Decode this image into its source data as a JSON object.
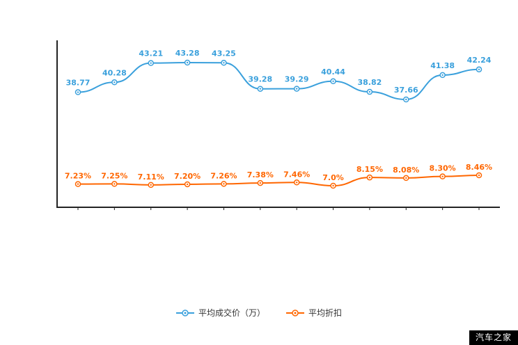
{
  "chart_data": {
    "type": "line",
    "grid": false,
    "legend_position": "bottom",
    "axis_color": "#222222",
    "x_axis": {
      "tick_count": 12,
      "labels_visible": false
    },
    "series": [
      {
        "name": "平均成交价（万）",
        "color": "#3aa0dc",
        "values": [
          38.77,
          40.28,
          43.21,
          43.28,
          43.25,
          39.28,
          39.29,
          40.44,
          38.82,
          37.66,
          41.38,
          42.24
        ],
        "labels": [
          "38.77",
          "40.28",
          "43.21",
          "43.28",
          "43.25",
          "39.28",
          "39.29",
          "40.44",
          "38.82",
          "37.66",
          "41.38",
          "42.24"
        ]
      },
      {
        "name": "平均折扣",
        "color": "#ff6600",
        "values": [
          7.23,
          7.25,
          7.11,
          7.2,
          7.26,
          7.38,
          7.46,
          7.0,
          8.15,
          8.08,
          8.3,
          8.46
        ],
        "labels": [
          "7.23%",
          "7.25%",
          "7.11%",
          "7.20%",
          "7.26%",
          "7.38%",
          "7.46%",
          "7.0%",
          "8.15%",
          "8.08%",
          "8.30%",
          "8.46%"
        ]
      }
    ]
  },
  "watermark": {
    "text": "汽车之家"
  }
}
